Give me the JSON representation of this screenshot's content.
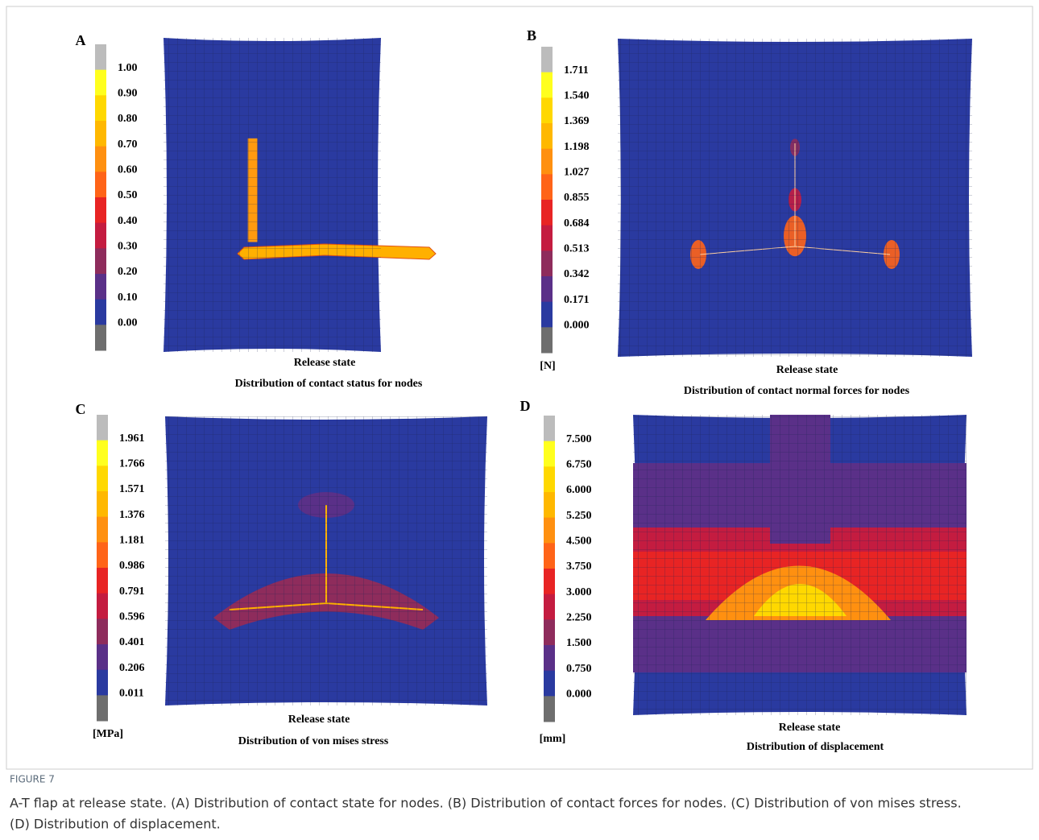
{
  "panels": [
    {
      "letter": "A",
      "colorbar": [
        "1.00",
        "0.90",
        "0.80",
        "0.70",
        "0.60",
        "0.50",
        "0.40",
        "0.30",
        "0.20",
        "0.10",
        "0.00"
      ],
      "state": "Release state",
      "title": "Distribution of contact status for nodes"
    },
    {
      "letter": "B",
      "colorbar": [
        "1.711",
        "1.540",
        "1.369",
        "1.198",
        "1.027",
        "0.855",
        "0.684",
        "0.513",
        "0.342",
        "0.171",
        "0.000"
      ],
      "unit": "[N]",
      "state": "Release state",
      "title": "Distribution of contact normal forces for nodes"
    },
    {
      "letter": "C",
      "colorbar": [
        "1.961",
        "1.766",
        "1.571",
        "1.376",
        "1.181",
        "0.986",
        "0.791",
        "0.596",
        "0.401",
        "0.206",
        "0.011"
      ],
      "unit": "[MPa]",
      "state": "Release state",
      "title": "Distribution of von mises stress"
    },
    {
      "letter": "D",
      "colorbar": [
        "7.500",
        "6.750",
        "6.000",
        "5.250",
        "4.500",
        "3.750",
        "3.000",
        "2.250",
        "1.500",
        "0.750",
        "0.000"
      ],
      "unit": "[mm]",
      "state": "Release state",
      "title": "Distribution of displacement"
    }
  ],
  "figure": {
    "label": "FIGURE 7",
    "caption": [
      "A-T flap at release state. (A) Distribution of contact state for nodes. (B) Distribution of contact forces for nodes. (C) Distribution of von mises stress.",
      "(D) Distribution of displacement."
    ]
  }
}
